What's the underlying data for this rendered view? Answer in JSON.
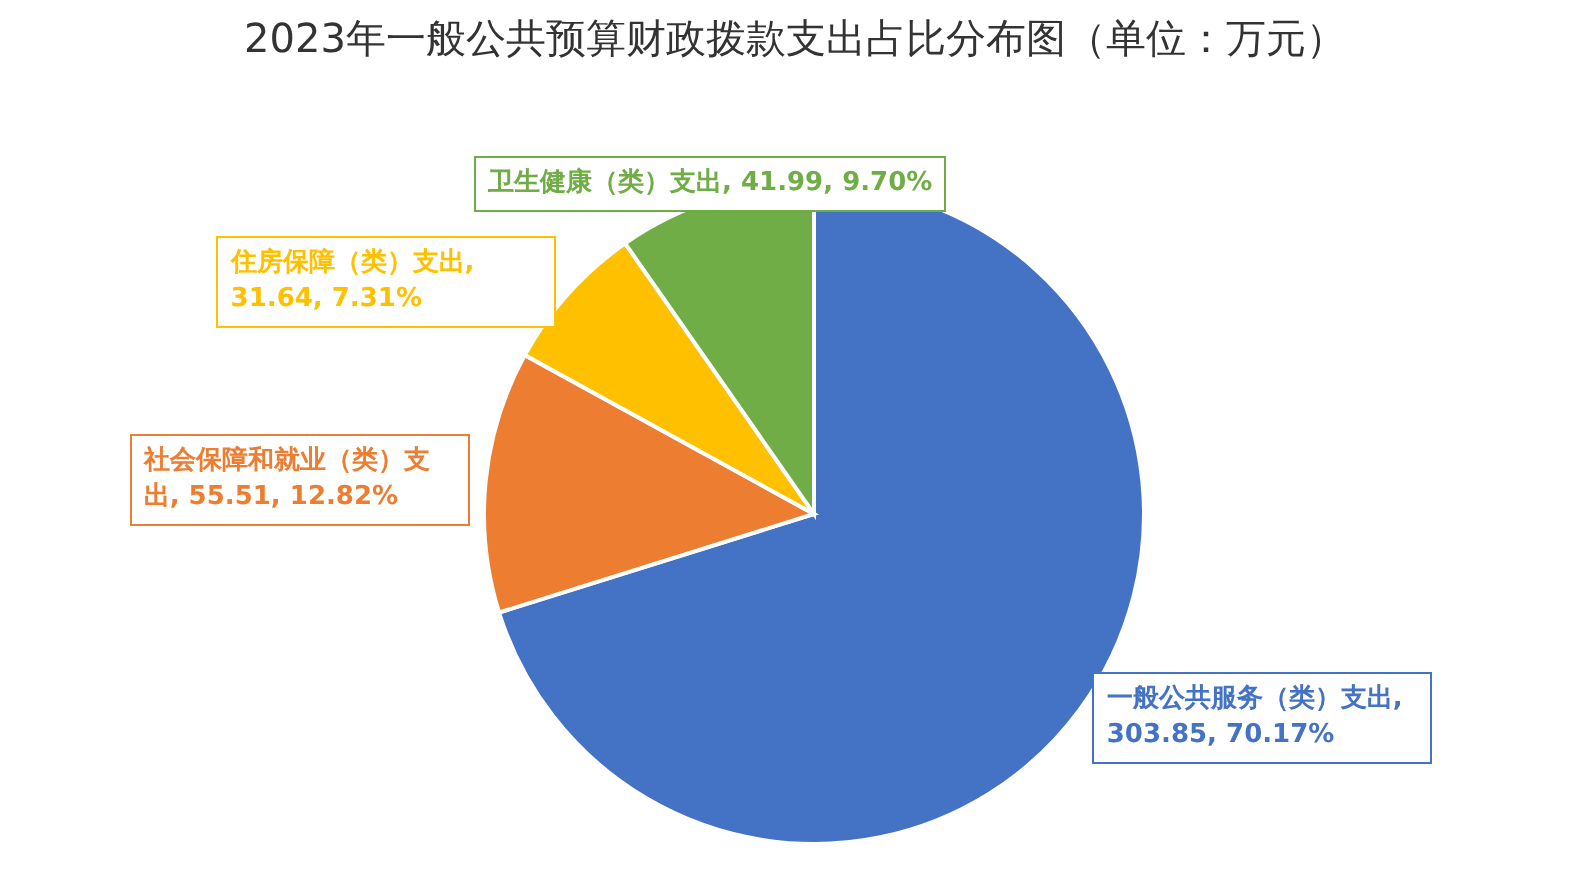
{
  "chart_data": {
    "type": "pie",
    "title": "2023年一般公共预算财政拨款支出占比分布图（单位：万元）",
    "categories": [
      "一般公共服务（类）支出, 303.85, 70.17%",
      "社会保障和就业（类）支出, 55.51, 12.82%",
      "住房保障（类）支出, 31.64, 7.31%",
      "卫生健康（类）支出, 41.99, 9.70%"
    ],
    "values": [
      303.85,
      55.51,
      31.64,
      41.99
    ],
    "colors": [
      "#4472c4",
      "#ed7d31",
      "#ffc000",
      "#70ad47"
    ],
    "legend": false
  }
}
